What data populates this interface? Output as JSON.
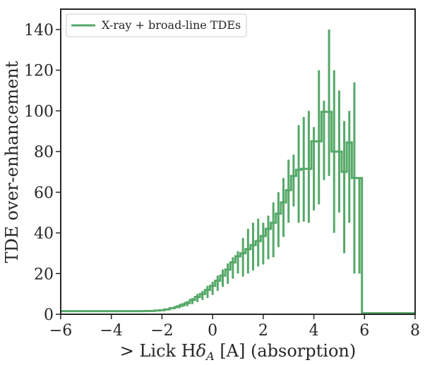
{
  "chart_data": {
    "type": "line",
    "title": "",
    "xlabel_prefix": "> Lick H",
    "xlabel_symbol": "δ",
    "xlabel_subscript": "A",
    "xlabel_suffix": " [A] (absorption)",
    "ylabel": "TDE over-enhancement",
    "xlim": [
      -6,
      8
    ],
    "ylim": [
      0,
      150
    ],
    "xticks": [
      -6,
      -4,
      -2,
      0,
      2,
      4,
      6,
      8
    ],
    "xtick_labels": [
      "−6",
      "−4",
      "−2",
      "0",
      "2",
      "4",
      "6",
      "8"
    ],
    "yticks": [
      0,
      20,
      40,
      60,
      80,
      100,
      120,
      140
    ],
    "ytick_labels": [
      "0",
      "20",
      "40",
      "60",
      "80",
      "100",
      "120",
      "140"
    ],
    "legend_position": "top-left",
    "series": [
      {
        "name": "X-ray + broad-line TDEs",
        "color": "#55a868",
        "style": "steps-mid",
        "x": [
          -6.0,
          -3.0,
          -2.4,
          -2.2,
          -2.0,
          -1.8,
          -1.6,
          -1.4,
          -1.2,
          -1.0,
          -0.8,
          -0.6,
          -0.4,
          -0.2,
          0.0,
          0.2,
          0.4,
          0.6,
          0.8,
          1.0,
          1.2,
          1.4,
          1.6,
          1.8,
          2.0,
          2.2,
          2.4,
          2.6,
          2.8,
          3.0,
          3.2,
          3.4,
          3.6,
          3.8,
          4.0,
          4.2,
          4.4,
          4.6,
          4.8,
          5.0,
          5.2,
          5.4,
          5.6,
          5.8,
          6.0,
          8.0
        ],
        "y": [
          1.5,
          1.5,
          1.6,
          1.8,
          2.0,
          2.4,
          3.0,
          3.5,
          4.5,
          5.5,
          7.0,
          8.5,
          10.0,
          12.0,
          14.0,
          16.5,
          19.0,
          22.0,
          25.5,
          28.5,
          30.0,
          32.0,
          34.0,
          36.0,
          38.5,
          42.0,
          45.0,
          49.5,
          55.0,
          61.0,
          68.0,
          71.0,
          71.5,
          71.5,
          85.0,
          85.0,
          99.5,
          99.5,
          80.0,
          80.0,
          70.0,
          84.5,
          67.0,
          67.0,
          0.5,
          0.5
        ],
        "err_x": [
          -1.4,
          -1.2,
          -1.0,
          -0.8,
          -0.6,
          -0.4,
          -0.2,
          0.0,
          0.2,
          0.4,
          0.6,
          0.8,
          1.0,
          1.2,
          1.4,
          1.6,
          1.8,
          2.0,
          2.2,
          2.4,
          2.6,
          2.8,
          3.0,
          3.2,
          3.4,
          3.6,
          3.8,
          4.0,
          4.2,
          4.4,
          4.6,
          4.8,
          5.0,
          5.2,
          5.4,
          5.6,
          5.8
        ],
        "err_lo": [
          3.0,
          3.5,
          4.0,
          5.0,
          6.0,
          7.0,
          8.0,
          9.5,
          11.5,
          13.5,
          15.0,
          17.5,
          20.0,
          18.5,
          20.0,
          21.5,
          23.5,
          24.5,
          27.0,
          28.0,
          33.0,
          38.0,
          45.0,
          53.0,
          45.0,
          45.5,
          45.0,
          51.0,
          54.0,
          66.0,
          68.0,
          40.0,
          50.0,
          30.0,
          45.0,
          20.0,
          20.0
        ],
        "err_hi": [
          4.5,
          5.5,
          6.5,
          8.0,
          10.0,
          11.5,
          14.0,
          16.0,
          19.0,
          22.0,
          25.0,
          28.0,
          31.0,
          37.5,
          42.0,
          45.0,
          47.0,
          45.0,
          48.5,
          55.0,
          60.0,
          67.0,
          76.0,
          78.5,
          93.0,
          97.0,
          100.0,
          92.0,
          120.0,
          105.0,
          140.0,
          120.0,
          110.0,
          95.0,
          100.0,
          114.0,
          67.0
        ]
      }
    ]
  }
}
